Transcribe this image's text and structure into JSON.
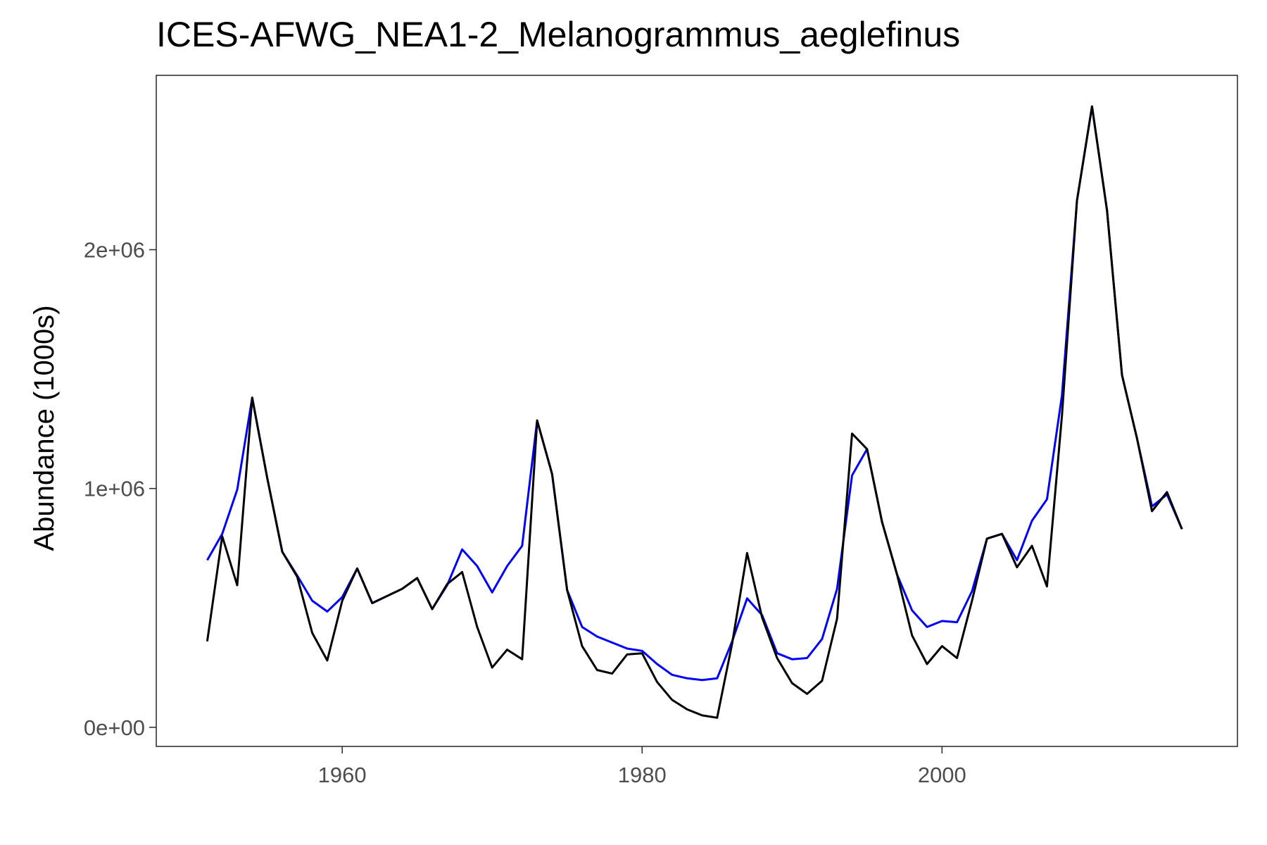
{
  "chart_data": {
    "type": "line",
    "title": "ICES-AFWG_NEA1-2_Melanogrammus_aeglefinus",
    "xlabel": "",
    "ylabel": "Abundance (1000s)",
    "xlim": [
      1947.6,
      2019.7
    ],
    "ylim": [
      -80000,
      2730000
    ],
    "x_ticks": [
      1960,
      1980,
      2000
    ],
    "x_tick_labels": [
      "1960",
      "1980",
      "2000"
    ],
    "y_ticks": [
      0,
      1000000,
      2000000
    ],
    "y_tick_labels": [
      "0e+00",
      "1e+06",
      "2e+06"
    ],
    "grid": false,
    "legend": "none",
    "series": [
      {
        "color": "#0000ff",
        "x": [
          1951,
          1952,
          1953,
          1954,
          1955,
          1956,
          1957,
          1958,
          1959,
          1960,
          1961,
          1962,
          1963,
          1964,
          1965,
          1966,
          1967,
          1968,
          1969,
          1970,
          1971,
          1972,
          1973,
          1974,
          1975,
          1976,
          1977,
          1978,
          1979,
          1980,
          1981,
          1982,
          1983,
          1984,
          1985,
          1986,
          1987,
          1988,
          1989,
          1990,
          1991,
          1992,
          1993,
          1994,
          1995,
          1996,
          1997,
          1998,
          1999,
          2000,
          2001,
          2002,
          2003,
          2004,
          2005,
          2006,
          2007,
          2008,
          2009,
          2010,
          2011,
          2012,
          2013,
          2014,
          2015,
          2016
        ],
        "values": [
          700000,
          810000,
          995000,
          1380000,
          1045000,
          735000,
          635000,
          530000,
          485000,
          545000,
          665000,
          520000,
          550000,
          580000,
          625000,
          495000,
          595000,
          745000,
          675000,
          565000,
          675000,
          760000,
          1285000,
          1060000,
          575000,
          420000,
          380000,
          355000,
          330000,
          320000,
          265000,
          220000,
          205000,
          198000,
          205000,
          360000,
          540000,
          470000,
          310000,
          285000,
          290000,
          370000,
          580000,
          1055000,
          1165000,
          860000,
          640000,
          490000,
          420000,
          445000,
          440000,
          570000,
          790000,
          810000,
          700000,
          865000,
          955000,
          1390000,
          2205000,
          2600000,
          2165000,
          1475000,
          1210000,
          925000,
          975000,
          830000
        ]
      },
      {
        "color": "#000000",
        "x": [
          1951,
          1952,
          1953,
          1954,
          1955,
          1956,
          1957,
          1958,
          1959,
          1960,
          1961,
          1962,
          1963,
          1964,
          1965,
          1966,
          1967,
          1968,
          1969,
          1970,
          1971,
          1972,
          1973,
          1974,
          1975,
          1976,
          1977,
          1978,
          1979,
          1980,
          1981,
          1982,
          1983,
          1984,
          1985,
          1986,
          1987,
          1988,
          1989,
          1990,
          1991,
          1992,
          1993,
          1994,
          1995,
          1996,
          1997,
          1998,
          1999,
          2000,
          2001,
          2002,
          2003,
          2004,
          2005,
          2006,
          2007,
          2008,
          2009,
          2010,
          2011,
          2012,
          2013,
          2014,
          2015,
          2016
        ],
        "values": [
          360000,
          800000,
          595000,
          1380000,
          1045000,
          735000,
          630000,
          395000,
          280000,
          530000,
          665000,
          520000,
          550000,
          580000,
          625000,
          495000,
          600000,
          650000,
          420000,
          250000,
          325000,
          285000,
          1285000,
          1060000,
          575000,
          340000,
          240000,
          225000,
          305000,
          310000,
          190000,
          115000,
          75000,
          50000,
          40000,
          350000,
          730000,
          460000,
          290000,
          185000,
          140000,
          195000,
          455000,
          1230000,
          1165000,
          860000,
          640000,
          385000,
          265000,
          340000,
          290000,
          530000,
          790000,
          810000,
          670000,
          760000,
          590000,
          1305000,
          2205000,
          2600000,
          2165000,
          1475000,
          1210000,
          905000,
          985000,
          830000
        ]
      }
    ]
  }
}
